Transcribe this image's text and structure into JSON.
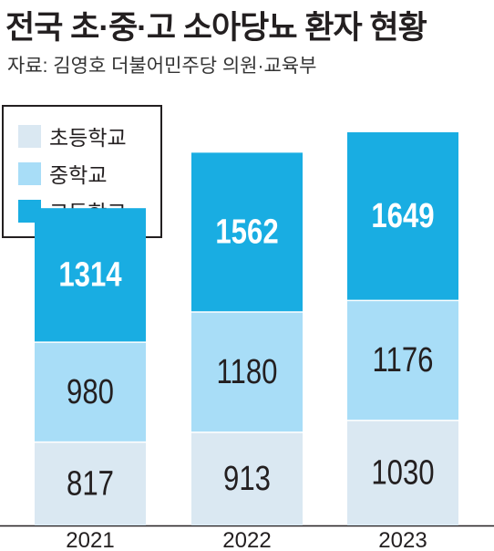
{
  "header": {
    "title": "전국 초·중·고 소아당뇨 환자 현황",
    "source": "자료: 김영호 더불어민주당 의원·교육부"
  },
  "colors": {
    "elementary": "#dae8f2",
    "middle": "#a8ddf7",
    "high": "#19ade2",
    "text": "#231f20",
    "high_label": "#ffffff"
  },
  "chart_data": {
    "type": "bar",
    "stacked": true,
    "categories": [
      "2021",
      "2022",
      "2023"
    ],
    "series": [
      {
        "name": "초등학교",
        "values": [
          817,
          913,
          1030
        ]
      },
      {
        "name": "중학교",
        "values": [
          980,
          1180,
          1176
        ]
      },
      {
        "name": "고등학교",
        "values": [
          1314,
          1562,
          1649
        ]
      }
    ],
    "title": "전국 초·중·고 소아당뇨 환자 현황",
    "legend_position": "top-left",
    "grid": false
  }
}
